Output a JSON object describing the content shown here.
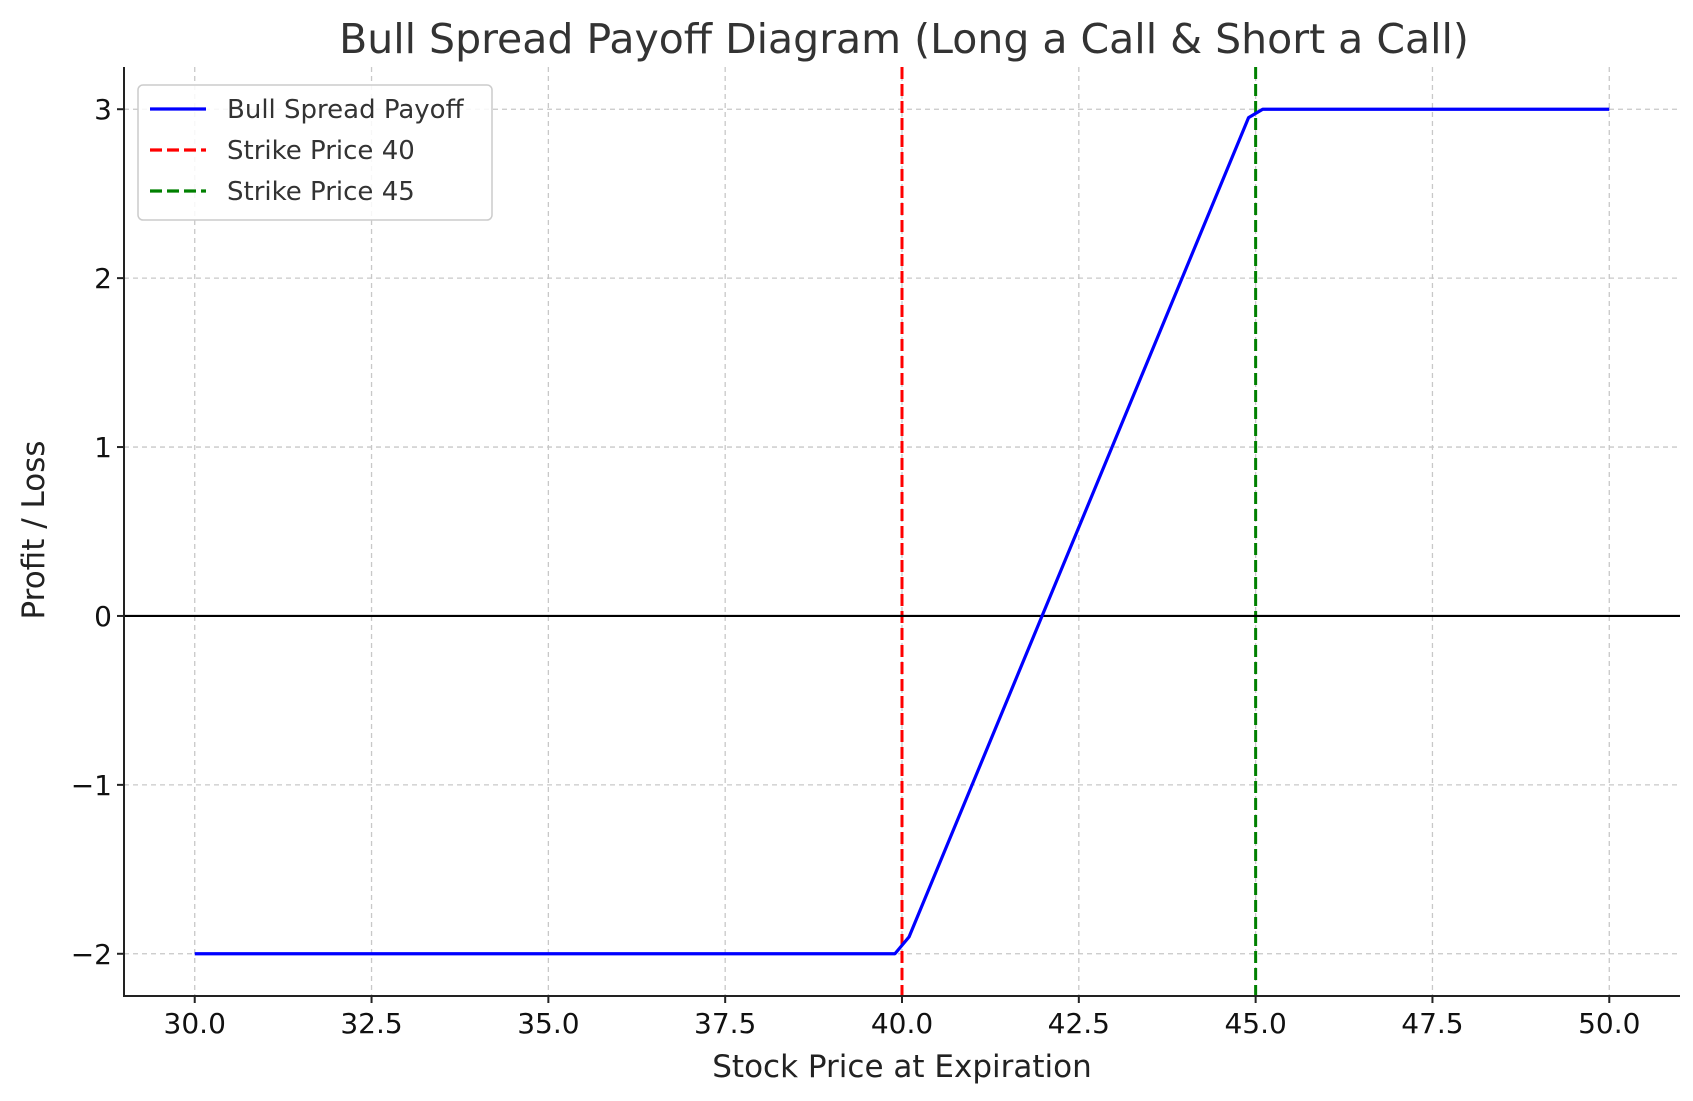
{
  "chart_data": {
    "type": "line",
    "title": "Bull Spread Payoff Diagram (Long a Call & Short a Call)",
    "xlabel": "Stock Price at Expiration",
    "ylabel": "Profit / Loss",
    "xlim": [
      29.0,
      51.0
    ],
    "ylim": [
      -2.25,
      3.25
    ],
    "xticks": [
      30.0,
      32.5,
      35.0,
      37.5,
      40.0,
      42.5,
      45.0,
      47.5,
      50.0
    ],
    "xtick_labels": [
      "30.0",
      "32.5",
      "35.0",
      "37.5",
      "40.0",
      "42.5",
      "45.0",
      "47.5",
      "50.0"
    ],
    "yticks": [
      -2,
      -1,
      0,
      1,
      2,
      3
    ],
    "ytick_labels": [
      "−2",
      "−1",
      "0",
      "1",
      "2",
      "3"
    ],
    "grid": true,
    "legend_position": "top-left",
    "series": [
      {
        "name": "Bull Spread Payoff",
        "color": "#0000ff",
        "style": "solid",
        "x": [
          30.0,
          39.9,
          40.1,
          44.9,
          45.1,
          50.0
        ],
        "y": [
          -2.0,
          -2.0,
          -1.9,
          2.95,
          3.0,
          3.0
        ]
      }
    ],
    "reference_lines": [
      {
        "name": "Strike Price 40",
        "orientation": "vertical",
        "x": 40,
        "color": "#ff0000",
        "style": "dashed"
      },
      {
        "name": "Strike Price 45",
        "orientation": "vertical",
        "x": 45,
        "color": "#008000",
        "style": "dashed"
      },
      {
        "orientation": "horizontal",
        "y": 0,
        "color": "#000000",
        "style": "solid"
      }
    ],
    "legend": [
      {
        "label": "Bull Spread Payoff",
        "color": "#0000ff",
        "style": "solid"
      },
      {
        "label": "Strike Price 40",
        "color": "#ff0000",
        "style": "dashed"
      },
      {
        "label": "Strike Price 45",
        "color": "#008000",
        "style": "dashed"
      }
    ]
  }
}
